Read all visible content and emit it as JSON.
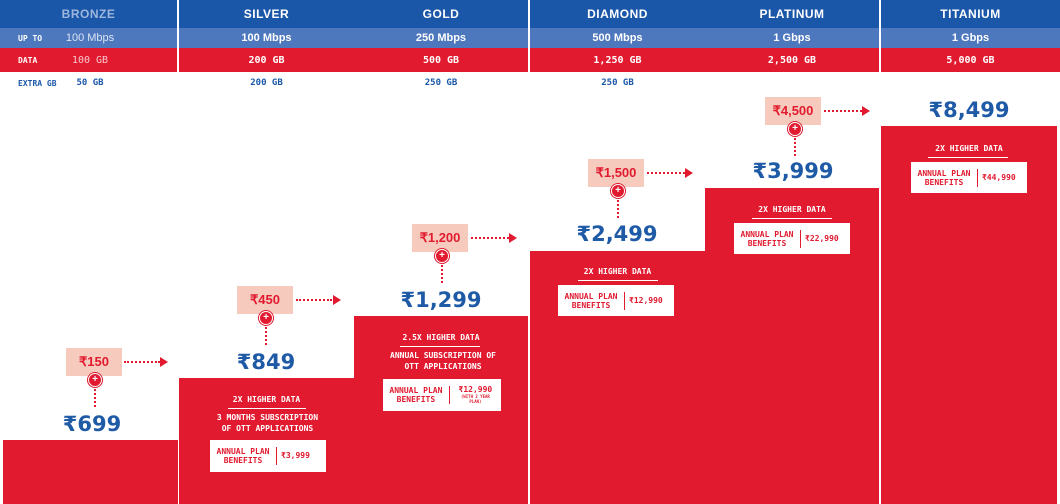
{
  "plans": [
    {
      "name": "BRONZE",
      "speed": "100 Mbps",
      "data": "100 GB",
      "extra": "50 GB",
      "price": "₹699",
      "addon": "₹150",
      "feature1": "",
      "feature2": "",
      "benefit_label": "",
      "benefit_value": "",
      "benefit_note": ""
    },
    {
      "name": "SILVER",
      "speed": "100 Mbps",
      "data": "200 GB",
      "extra": "200 GB",
      "price": "₹849",
      "addon": "₹450",
      "feature1": "2X HIGHER DATA",
      "feature2": "3 MONTHS SUBSCRIPTION OF OTT APPLICATIONS",
      "benefit_label": "ANNUAL PLAN BENEFITS",
      "benefit_value": "₹3,999",
      "benefit_note": ""
    },
    {
      "name": "GOLD",
      "speed": "250 Mbps",
      "data": "500 GB",
      "extra": "250 GB",
      "price": "₹1,299",
      "addon": "₹1,200",
      "feature1": "2.5X HIGHER DATA",
      "feature2": "ANNUAL SUBSCRIPTION OF OTT APPLICATIONS",
      "benefit_label": "ANNUAL PLAN BENEFITS",
      "benefit_value": "₹12,990",
      "benefit_note": "(WITH 2 YEAR PLAN)"
    },
    {
      "name": "DIAMOND",
      "speed": "500 Mbps",
      "data": "1,250 GB",
      "extra": "250 GB",
      "price": "₹2,499",
      "addon": "₹1,500",
      "feature1": "2X HIGHER DATA",
      "feature2": "",
      "benefit_label": "ANNUAL PLAN BENEFITS",
      "benefit_value": "₹12,990",
      "benefit_note": ""
    },
    {
      "name": "PLATINUM",
      "speed": "1 Gbps",
      "data": "2,500 GB",
      "extra": "",
      "price": "₹3,999",
      "addon": "₹4,500",
      "feature1": "2X HIGHER DATA",
      "feature2": "",
      "benefit_label": "ANNUAL PLAN BENEFITS",
      "benefit_value": "₹22,990",
      "benefit_note": ""
    },
    {
      "name": "TITANIUM",
      "speed": "1 Gbps",
      "data": "5,000 GB",
      "extra": "",
      "price": "₹8,499",
      "addon": "",
      "feature1": "2X HIGHER DATA",
      "feature2": "",
      "benefit_label": "ANNUAL PLAN BENEFITS",
      "benefit_value": "₹44,990",
      "benefit_note": ""
    }
  ],
  "row_labels": {
    "speed": "UP TO",
    "data": "DATA",
    "extra": "EXTRA GB"
  },
  "colors": {
    "blue_dark": "#1a57a8",
    "blue_light": "#4d78bd",
    "red": "#e11a2f",
    "peach": "#f6cbbd",
    "bronze_text": "#9eb6dd"
  }
}
